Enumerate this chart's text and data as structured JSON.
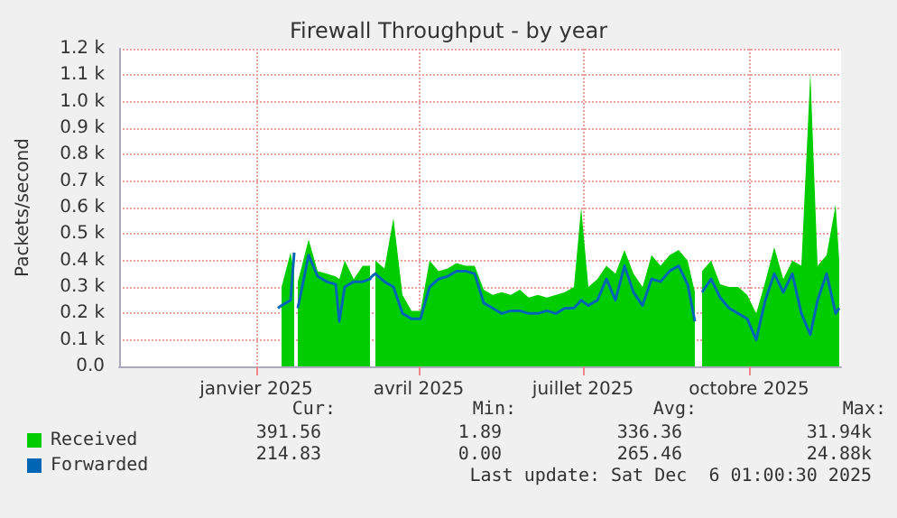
{
  "chart_data": {
    "type": "area",
    "title": "Firewall Throughput - by year",
    "ylabel": "Packets/second",
    "x": [
      "2025-01-28",
      "2025-01-30",
      "2025-02-04",
      "2025-02-06",
      "2025-02-07",
      "2025-02-08",
      "2025-02-14",
      "2025-02-19",
      "2025-02-24",
      "2025-03-01",
      "2025-03-03",
      "2025-03-06",
      "2025-03-11",
      "2025-03-16",
      "2025-03-20",
      "2025-03-21",
      "2025-03-23",
      "2025-03-28",
      "2025-04-02",
      "2025-04-07",
      "2025-04-12",
      "2025-04-17",
      "2025-04-22",
      "2025-04-27",
      "2025-05-02",
      "2025-05-07",
      "2025-05-12",
      "2025-05-17",
      "2025-05-22",
      "2025-05-27",
      "2025-06-01",
      "2025-06-06",
      "2025-06-11",
      "2025-06-16",
      "2025-06-21",
      "2025-06-26",
      "2025-07-01",
      "2025-07-06",
      "2025-07-11",
      "2025-07-15",
      "2025-07-19",
      "2025-07-24",
      "2025-07-29",
      "2025-08-03",
      "2025-08-08",
      "2025-08-13",
      "2025-08-18",
      "2025-08-23",
      "2025-08-28",
      "2025-09-02",
      "2025-09-07",
      "2025-09-12",
      "2025-09-16",
      "2025-09-18",
      "2025-09-20",
      "2025-09-25",
      "2025-09-30",
      "2025-10-05",
      "2025-10-10",
      "2025-10-15",
      "2025-10-20",
      "2025-10-25",
      "2025-10-30",
      "2025-11-04",
      "2025-11-09",
      "2025-11-14",
      "2025-11-19",
      "2025-11-23",
      "2025-11-28",
      "2025-12-03",
      "2025-12-05"
    ],
    "series": [
      {
        "name": "Received",
        "color": "#00cc00",
        "values": [
          null,
          300,
          430,
          350,
          null,
          320,
          480,
          360,
          350,
          340,
          330,
          400,
          330,
          380,
          380,
          null,
          400,
          370,
          560,
          270,
          210,
          210,
          400,
          360,
          370,
          390,
          380,
          380,
          290,
          270,
          280,
          270,
          290,
          260,
          270,
          260,
          270,
          280,
          300,
          600,
          300,
          330,
          380,
          350,
          440,
          350,
          300,
          420,
          380,
          420,
          440,
          400,
          280,
          null,
          360,
          400,
          310,
          300,
          300,
          270,
          200,
          320,
          450,
          330,
          400,
          380,
          1110,
          380,
          420,
          610,
          400
        ]
      },
      {
        "name": "Forwarded",
        "color": "#0066b3",
        "type": "line",
        "values": [
          220,
          230,
          250,
          430,
          null,
          220,
          420,
          340,
          320,
          310,
          170,
          300,
          320,
          320,
          330,
          340,
          350,
          320,
          300,
          200,
          180,
          180,
          300,
          330,
          340,
          360,
          360,
          350,
          240,
          220,
          200,
          210,
          210,
          200,
          200,
          210,
          200,
          220,
          220,
          250,
          230,
          250,
          330,
          250,
          380,
          280,
          230,
          330,
          320,
          360,
          380,
          310,
          170,
          null,
          280,
          330,
          260,
          220,
          200,
          180,
          100,
          250,
          350,
          280,
          350,
          200,
          120,
          250,
          350,
          200,
          220
        ]
      }
    ],
    "xlim": [
      "2024-11-01",
      "2025-12-06"
    ],
    "xticks": [
      {
        "value": "2025-01-16",
        "label": "janvier 2025"
      },
      {
        "value": "2025-04-16",
        "label": "avril 2025"
      },
      {
        "value": "2025-07-16",
        "label": "juillet 2025"
      },
      {
        "value": "2025-10-16",
        "label": "octobre 2025"
      }
    ],
    "ylim": [
      0,
      1200
    ],
    "yticks": [
      {
        "value": 0,
        "label": "0.0"
      },
      {
        "value": 100,
        "label": "0.1 k"
      },
      {
        "value": 200,
        "label": "0.2 k"
      },
      {
        "value": 300,
        "label": "0.3 k"
      },
      {
        "value": 400,
        "label": "0.4 k"
      },
      {
        "value": 500,
        "label": "0.5 k"
      },
      {
        "value": 600,
        "label": "0.6 k"
      },
      {
        "value": 700,
        "label": "0.7 k"
      },
      {
        "value": 800,
        "label": "0.8 k"
      },
      {
        "value": 900,
        "label": "0.9 k"
      },
      {
        "value": 1000,
        "label": "1.0 k"
      },
      {
        "value": 1100,
        "label": "1.1 k"
      },
      {
        "value": 1200,
        "label": "1.2 k"
      }
    ],
    "grid": true,
    "legend": "bottom",
    "annotations": [
      "Cur:",
      "Min:",
      "Avg:",
      "Max:",
      "391.56",
      "1.89",
      "336.36",
      "31.94k",
      "214.83",
      "0.00",
      "265.46",
      "24.88k",
      "Last update: Sat Dec  6 01:00:30 2025"
    ]
  }
}
